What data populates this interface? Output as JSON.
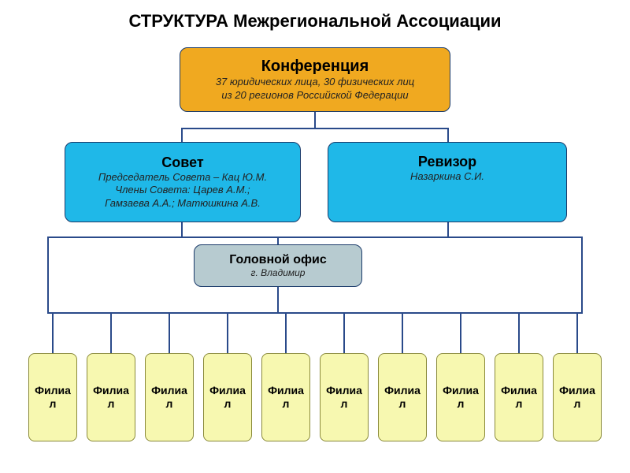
{
  "diagram": {
    "type": "tree",
    "background_color": "#ffffff",
    "connector_color": "#2a4a8a",
    "title": {
      "part1": "СТРУКТУРА",
      "part2": "Межрегиональной Ассоциации",
      "fontsize": 22,
      "color": "#000000"
    },
    "conference": {
      "title": "Конференция",
      "sub1": "37 юридических лица, 30 физических лиц",
      "sub2": "из 20 регионов Российской Федерации",
      "bg": "#f0a920",
      "border": "#1a3a6a",
      "title_fontsize": 20,
      "sub_fontsize": 13
    },
    "council": {
      "title": "Совет",
      "sub1": "Председатель Совета – Кац Ю.М.",
      "sub2": "Члены Совета: Царев А.М.;",
      "sub3": "Гамзаева А.А.; Матюшкина А.В.",
      "bg": "#1fb8e8",
      "border": "#1a3a6a",
      "title_fontsize": 18,
      "sub_fontsize": 13
    },
    "auditor": {
      "title": "Ревизор",
      "sub1": "Назаркина С.И.",
      "bg": "#1fb8e8",
      "border": "#1a3a6a",
      "title_fontsize": 18,
      "sub_fontsize": 13
    },
    "head_office": {
      "title": "Головной офис",
      "sub1": "г. Владимир",
      "bg": "#b7cbd0",
      "border": "#1a3a6a",
      "title_fontsize": 16,
      "sub_fontsize": 12
    },
    "branches": {
      "label": "Филиал",
      "count": 10,
      "bg": "#f7f8b0",
      "border": "#8a8a3a",
      "fontsize": 14
    }
  }
}
